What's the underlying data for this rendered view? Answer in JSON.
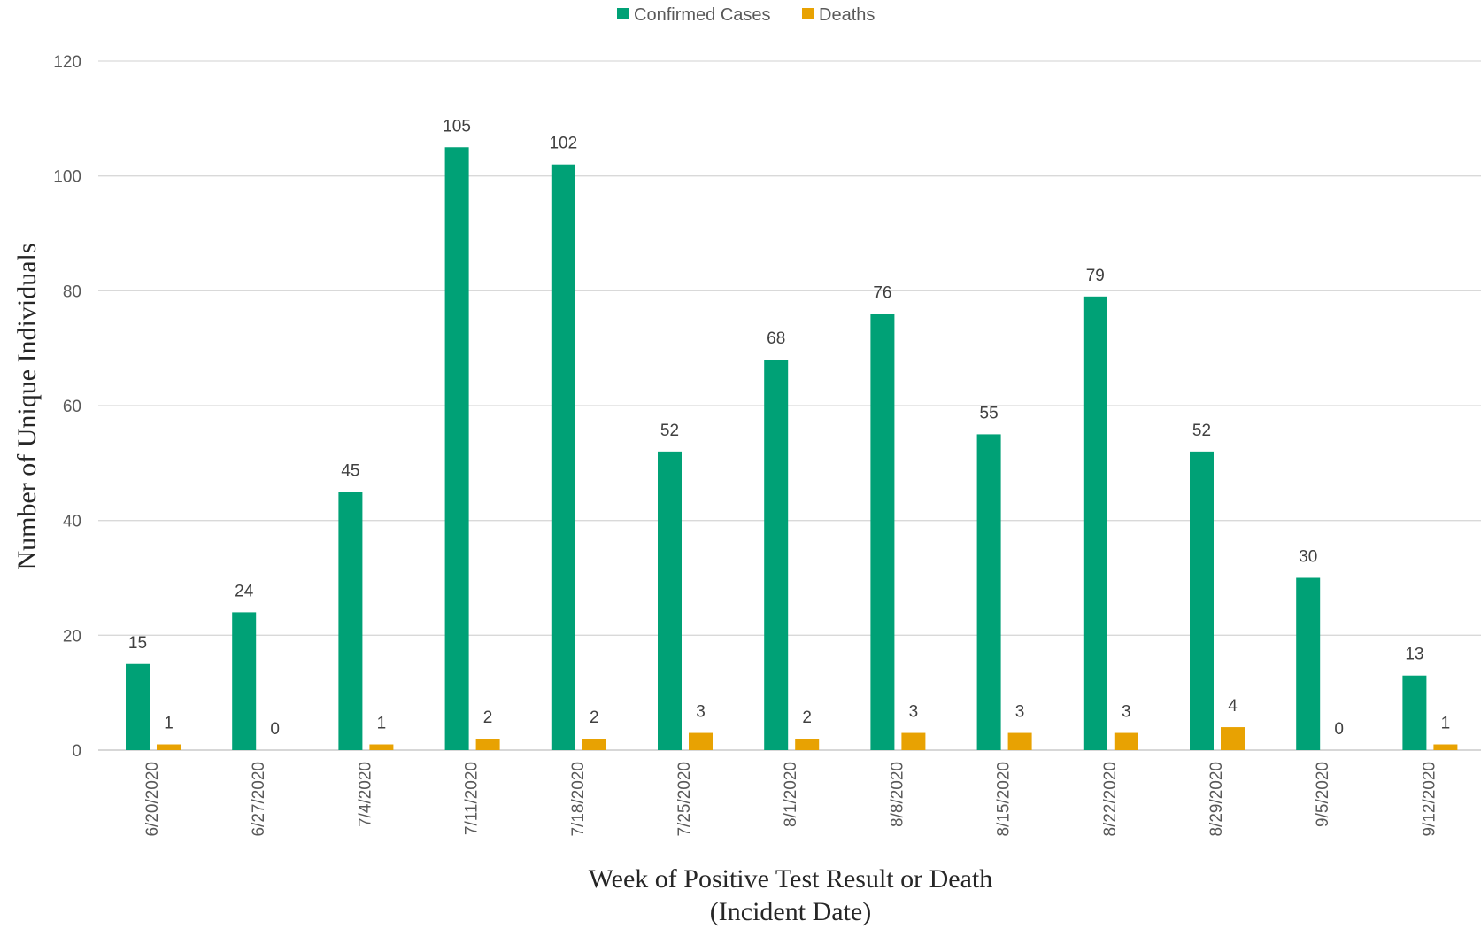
{
  "chart_data": {
    "type": "bar",
    "categories": [
      "6/20/2020",
      "6/27/2020",
      "7/4/2020",
      "7/11/2020",
      "7/18/2020",
      "7/25/2020",
      "8/1/2020",
      "8/8/2020",
      "8/15/2020",
      "8/22/2020",
      "8/29/2020",
      "9/5/2020",
      "9/12/2020"
    ],
    "series": [
      {
        "name": "Confirmed Cases",
        "color": "#00a176",
        "values": [
          15,
          24,
          45,
          105,
          102,
          52,
          68,
          76,
          55,
          79,
          52,
          30,
          13
        ]
      },
      {
        "name": "Deaths",
        "color": "#e8a202",
        "values": [
          1,
          0,
          1,
          2,
          2,
          3,
          2,
          3,
          3,
          3,
          4,
          0,
          1
        ]
      }
    ],
    "title": "",
    "xlabel_lines": [
      "Week of Positive Test Result or Death",
      "(Incident Date)"
    ],
    "ylabel": "Number of Unique Individuals",
    "ylim": [
      0,
      120
    ],
    "yticks": [
      0,
      20,
      40,
      60,
      80,
      100,
      120
    ],
    "grid": true,
    "legend_position": "top-center",
    "data_labels": true
  }
}
